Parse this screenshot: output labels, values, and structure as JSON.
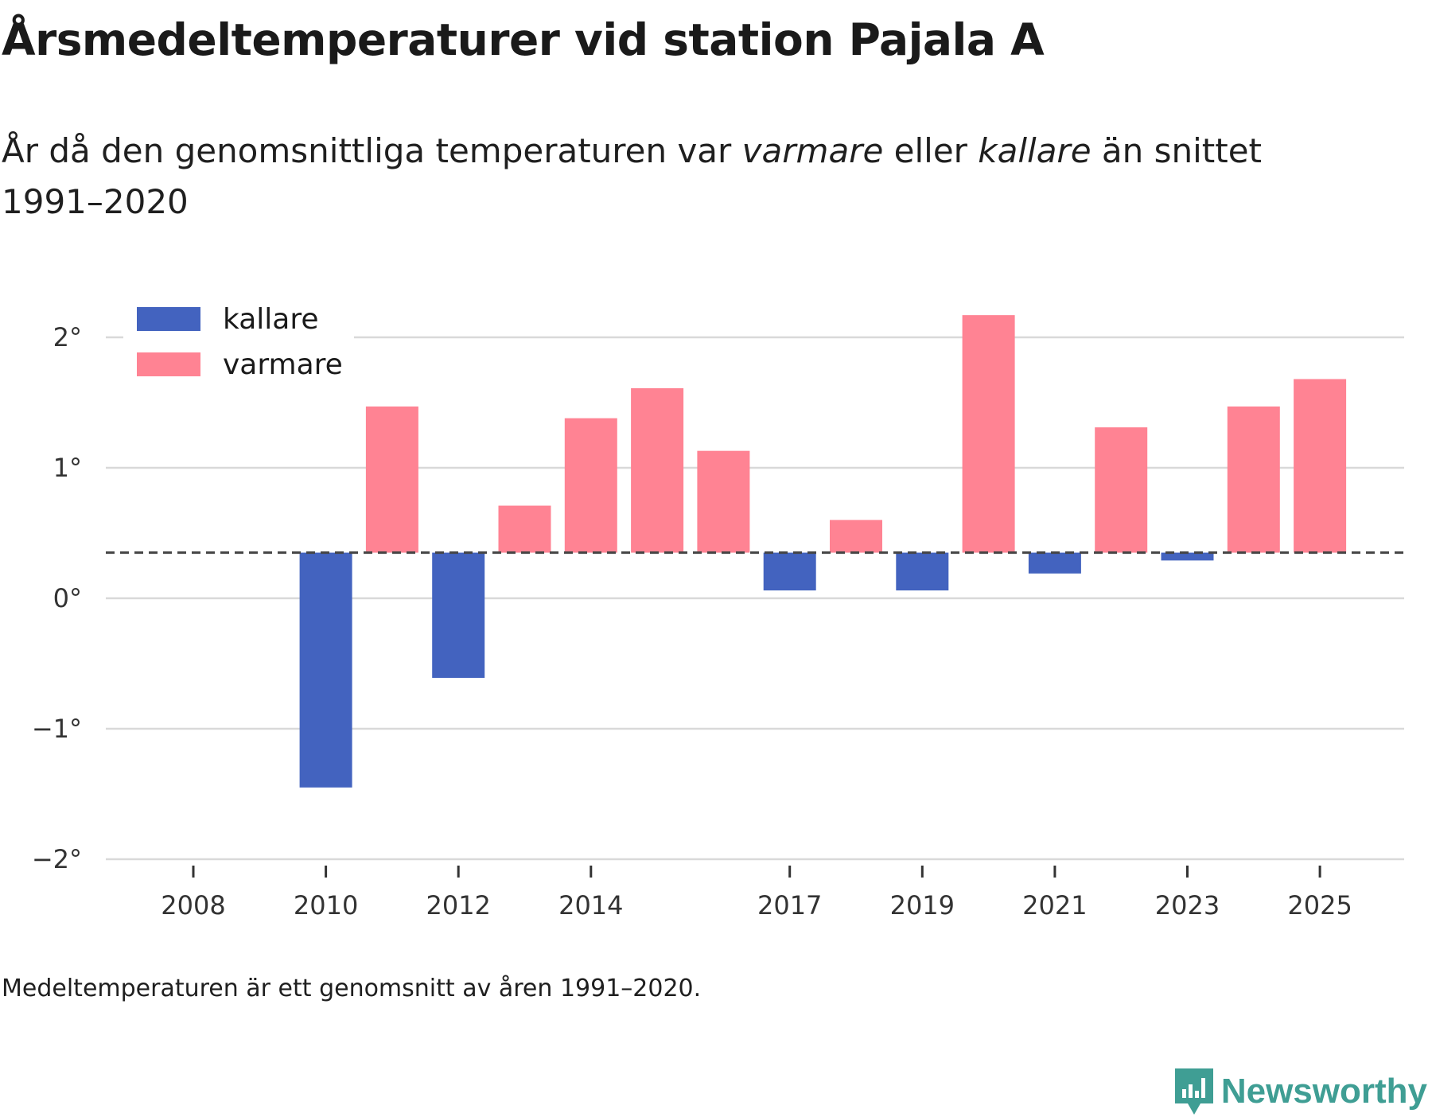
{
  "title": "Årsmedeltemperaturer vid station Pajala A",
  "subtitle": {
    "part1": "År då den genomsnittliga temperaturen var ",
    "warm_word": "varmare",
    "part2": " eller ",
    "cold_word": "kallare",
    "part3": " än snittet 1991–2020"
  },
  "footnote": "Medeltemperaturen är ett genomsnitt av åren 1991–2020.",
  "brand": {
    "name": "Newsworthy"
  },
  "colors": {
    "cold": "#4363bf",
    "warm": "#ff8393",
    "grid": "#d9d9d9",
    "baseline": "#444444",
    "brand": "#3f9e94"
  },
  "chart_data": {
    "type": "bar",
    "baseline": 0.35,
    "ylim": [
      -2.1,
      2.45
    ],
    "yticks": [
      {
        "value": 2,
        "label": "2°"
      },
      {
        "value": 1,
        "label": "1°"
      },
      {
        "value": 0,
        "label": "0°"
      },
      {
        "value": -1,
        "label": "−1°"
      },
      {
        "value": -2,
        "label": "−2°"
      }
    ],
    "xticks": [
      "2008",
      "2010",
      "2012",
      "2014",
      "2017",
      "2019",
      "2021",
      "2023",
      "2025"
    ],
    "legend": {
      "position": "top-left",
      "items": [
        {
          "key": "cold",
          "label": "kallare"
        },
        {
          "key": "warm",
          "label": "varmare"
        }
      ]
    },
    "x": [
      2008,
      2009,
      2010,
      2011,
      2012,
      2013,
      2014,
      2015,
      2016,
      2017,
      2018,
      2019,
      2020,
      2021,
      2022,
      2023,
      2024,
      2025
    ],
    "values": [
      0.35,
      0.35,
      -1.45,
      1.47,
      -0.61,
      0.71,
      1.38,
      1.61,
      1.13,
      0.06,
      0.6,
      0.06,
      2.17,
      0.19,
      1.31,
      0.29,
      1.47,
      1.68
    ]
  }
}
